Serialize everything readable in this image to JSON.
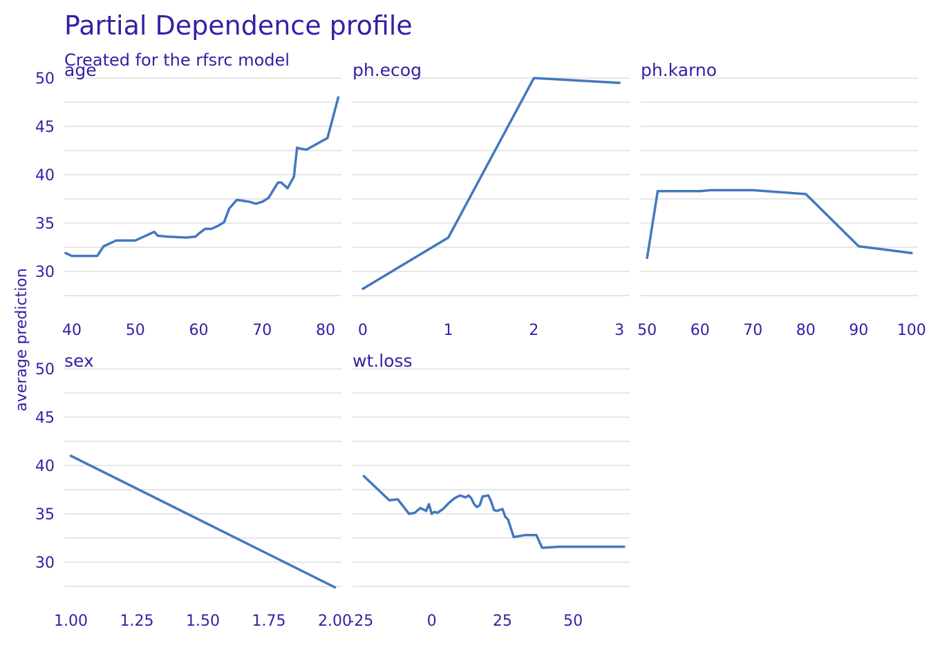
{
  "title": "Partial Dependence profile",
  "subtitle": "Created for the rfsrc model",
  "colors": {
    "text": "#371ea3",
    "line": "#4378bf",
    "grid": "#dddddd"
  },
  "chart_data": {
    "type": "line",
    "title": "Partial Dependence profile",
    "subtitle": "Created for the rfsrc model",
    "ylabel": "average prediction",
    "ylim": [
      25.5,
      50
    ],
    "yticks": [
      30,
      35,
      40,
      45,
      50
    ],
    "shared_y": true,
    "grid": true,
    "legend": "none",
    "panels": [
      {
        "name": "age",
        "xlim": [
          38.8,
          82.5
        ],
        "xticks": [
          40,
          50,
          60,
          70,
          80
        ],
        "xtick_labels": [
          "40",
          "50",
          "60",
          "70",
          "80"
        ],
        "x": [
          39,
          40,
          44,
          45,
          47,
          50,
          53,
          53.5,
          55,
          58,
          59.5,
          60,
          61,
          62,
          63,
          64,
          64.8,
          66,
          68,
          69,
          70,
          71,
          72.5,
          73,
          74,
          75,
          75.5,
          76,
          77,
          80.3,
          82
        ],
        "y": [
          31.9,
          31.6,
          31.6,
          32.6,
          33.2,
          33.2,
          34.1,
          33.7,
          33.6,
          33.5,
          33.6,
          33.9,
          34.4,
          34.4,
          34.7,
          35.1,
          36.5,
          37.4,
          37.2,
          37.0,
          37.2,
          37.6,
          39.2,
          39.2,
          38.6,
          39.8,
          42.8,
          42.7,
          42.6,
          43.8,
          48.0
        ]
      },
      {
        "name": "ph.ecog",
        "xlim": [
          -0.12,
          3.12
        ],
        "xticks": [
          0,
          1,
          2,
          3
        ],
        "xtick_labels": [
          "0",
          "1",
          "2",
          "3"
        ],
        "x": [
          0,
          1,
          2,
          3
        ],
        "y": [
          28.2,
          33.5,
          50.0,
          49.5
        ]
      },
      {
        "name": "ph.karno",
        "xlim": [
          48.8,
          101.2
        ],
        "xticks": [
          50,
          60,
          70,
          80,
          90,
          100
        ],
        "xtick_labels": [
          "50",
          "60",
          "70",
          "80",
          "90",
          "100"
        ],
        "x": [
          50,
          52,
          60,
          62,
          70,
          80,
          90,
          100
        ],
        "y": [
          31.4,
          38.3,
          38.3,
          38.4,
          38.4,
          38.0,
          32.6,
          31.9
        ]
      },
      {
        "name": "sex",
        "xlim": [
          0.975,
          2.025
        ],
        "xticks": [
          1.0,
          1.25,
          1.5,
          1.75,
          2.0
        ],
        "xtick_labels": [
          "1.00",
          "1.25",
          "1.50",
          "1.75",
          "2.00"
        ],
        "x": [
          1.0,
          2.0
        ],
        "y": [
          41.0,
          27.4
        ]
      },
      {
        "name": "wt.loss",
        "xlim": [
          -28,
          70
        ],
        "xticks": [
          -25,
          0,
          25,
          50
        ],
        "xtick_labels": [
          "-25",
          "0",
          "25",
          "50"
        ],
        "x": [
          -24,
          -15,
          -12,
          -8,
          -6,
          -4,
          -2,
          -1,
          0,
          1,
          2,
          4,
          6,
          8,
          10,
          12,
          13,
          14,
          15,
          16,
          17,
          18,
          20,
          21,
          22,
          23,
          25,
          26,
          27,
          29,
          33,
          37,
          39,
          40,
          45,
          68
        ],
        "y": [
          38.9,
          36.4,
          36.5,
          35.0,
          35.1,
          35.6,
          35.3,
          36.0,
          35.0,
          35.2,
          35.1,
          35.5,
          36.1,
          36.6,
          36.9,
          36.7,
          36.9,
          36.6,
          36.0,
          35.7,
          35.9,
          36.8,
          36.9,
          36.3,
          35.4,
          35.3,
          35.5,
          34.7,
          34.4,
          32.6,
          32.8,
          32.8,
          31.5,
          31.5,
          31.6,
          31.6
        ]
      }
    ]
  }
}
